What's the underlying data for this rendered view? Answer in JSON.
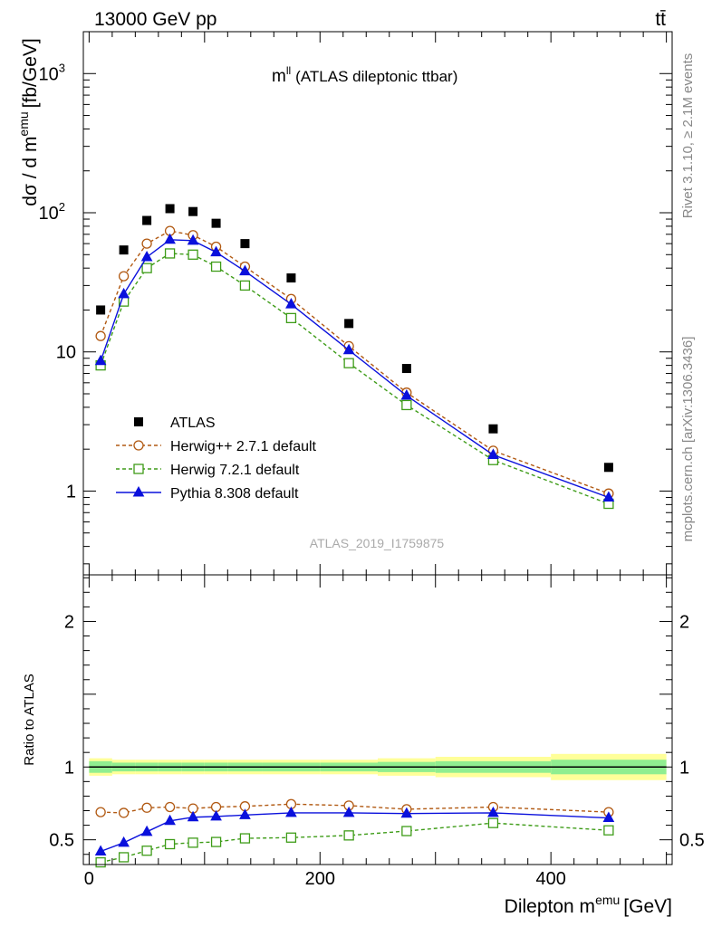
{
  "header": {
    "left": "13000 GeV pp",
    "right": "tt̄"
  },
  "side_text": {
    "rivet": "Rivet 3.1.10, ≥ 2.1M events",
    "mcplots": "mcplots.cern.ch [arXiv:1306.3436]"
  },
  "chart_data": {
    "type": "scatter",
    "title": "m",
    "title_sup": "ll",
    "subtitle": "(ATLAS dileptonic ttbar)",
    "watermark": "ATLAS_2019_I1759875",
    "xlabel": "Dilepton m",
    "xlabel_sup": "emu",
    "xlabel_unit": "[GeV]",
    "ylabel": "dσ / d m",
    "ylabel_sup": "emu",
    "ylabel_unit": "[fb/GeV]",
    "ratio_ylabel": "Ratio to ATLAS",
    "xlim": [
      -5,
      505
    ],
    "ylim": [
      0.25,
      2000
    ],
    "yscale": "log",
    "ratio_ylim": [
      0.33,
      2.32
    ],
    "x_ticks": [
      0,
      200,
      400
    ],
    "y_ticks": [
      {
        "value": 1,
        "label": "1"
      },
      {
        "value": 10,
        "label": "10"
      },
      {
        "value": 100,
        "label": "10",
        "sup": "2"
      },
      {
        "value": 1000,
        "label": "10",
        "sup": "3"
      }
    ],
    "ratio_y_ticks": [
      0.5,
      1,
      2
    ],
    "ratio_y_tick_labels": [
      "0.5",
      "1",
      "2"
    ],
    "x": [
      10,
      30,
      50,
      70,
      90,
      110,
      135,
      175,
      225,
      275,
      350,
      450
    ],
    "bin_edges": [
      0,
      20,
      40,
      60,
      80,
      100,
      120,
      150,
      200,
      250,
      300,
      400,
      500
    ],
    "data": {
      "name": "ATLAS",
      "values": [
        20,
        54,
        88,
        107,
        102,
        84,
        60,
        34,
        16,
        7.6,
        2.8,
        1.48
      ]
    },
    "ratio_band_stat": [
      0.04,
      0.03,
      0.03,
      0.03,
      0.03,
      0.03,
      0.03,
      0.03,
      0.03,
      0.035,
      0.04,
      0.05
    ],
    "ratio_band_total": [
      0.06,
      0.05,
      0.05,
      0.05,
      0.05,
      0.05,
      0.05,
      0.05,
      0.05,
      0.06,
      0.07,
      0.09
    ],
    "series": [
      {
        "name": "Herwig++ 2.7.1 default",
        "color": "#b15912",
        "dash": "4,3",
        "marker": "circle",
        "values": [
          13.0,
          35.0,
          60.0,
          74.0,
          69.0,
          57.0,
          41.0,
          24.0,
          11.0,
          5.1,
          1.95,
          0.96
        ],
        "ratio": [
          0.69,
          0.685,
          0.72,
          0.725,
          0.715,
          0.725,
          0.73,
          0.745,
          0.735,
          0.71,
          0.725,
          0.69
        ]
      },
      {
        "name": "Herwig 7.2.1 default",
        "color": "#3e9c18",
        "dash": "4,3",
        "marker": "square",
        "values": [
          8.0,
          23.0,
          40.0,
          51.0,
          50.0,
          41.0,
          30.0,
          17.5,
          8.3,
          4.15,
          1.67,
          0.81
        ],
        "ratio": [
          0.345,
          0.38,
          0.425,
          0.47,
          0.48,
          0.485,
          0.51,
          0.515,
          0.53,
          0.56,
          0.615,
          0.565
        ]
      },
      {
        "name": "Pythia 8.308 default",
        "color": "#0a10dc",
        "dash": "",
        "marker": "triangle",
        "values": [
          8.6,
          26.0,
          48.0,
          64.0,
          63.0,
          52.0,
          38.0,
          22.0,
          10.3,
          4.85,
          1.82,
          0.9
        ],
        "ratio": [
          0.42,
          0.48,
          0.555,
          0.63,
          0.655,
          0.66,
          0.67,
          0.685,
          0.685,
          0.68,
          0.685,
          0.65
        ]
      }
    ]
  }
}
